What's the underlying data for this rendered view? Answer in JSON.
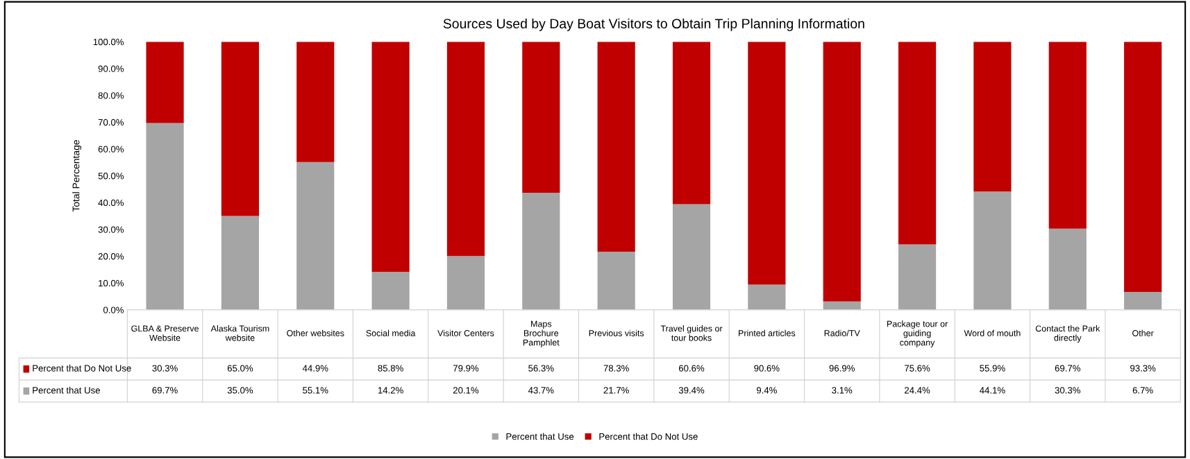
{
  "chart_data": {
    "type": "bar",
    "stacked": true,
    "title": "Sources Used by Day Boat Visitors to Obtain Trip Planning Information",
    "ylabel": "Total Percentage",
    "categories": [
      "GLBA & Preserve\nWebsite",
      "Alaska Tourism\nwebsite",
      "Other websites",
      "Social media",
      "Visitor Centers",
      "Maps\nBrochure\nPamphlet",
      "Previous visits",
      "Travel guides or\ntour books",
      "Printed articles",
      "Radio/TV",
      "Package tour or\nguiding\ncompany",
      "Word of mouth",
      "Contact the Park\ndirectly",
      "Other"
    ],
    "series": [
      {
        "name": "Percent that Use",
        "color": "#a5a5a5",
        "values": [
          69.7,
          35.0,
          55.1,
          14.2,
          20.1,
          43.7,
          21.7,
          39.4,
          9.4,
          3.1,
          24.4,
          44.1,
          30.3,
          6.7
        ],
        "value_labels": [
          "69.7%",
          "35.0%",
          "55.1%",
          "14.2%",
          "20.1%",
          "43.7%",
          "21.7%",
          "39.4%",
          "9.4%",
          "3.1%",
          "24.4%",
          "44.1%",
          "30.3%",
          "6.7%"
        ]
      },
      {
        "name": "Percent that Do Not Use",
        "color": "#c00000",
        "values": [
          30.3,
          65.0,
          44.9,
          85.8,
          79.9,
          56.3,
          78.3,
          60.6,
          90.6,
          96.9,
          75.6,
          55.9,
          69.7,
          93.3
        ],
        "value_labels": [
          "30.3%",
          "65.0%",
          "44.9%",
          "85.8%",
          "79.9%",
          "56.3%",
          "78.3%",
          "60.6%",
          "90.6%",
          "96.9%",
          "75.6%",
          "55.9%",
          "69.7%",
          "93.3%"
        ]
      }
    ],
    "ylim": [
      0,
      100
    ],
    "yticks": [
      {
        "value": 0,
        "label": "0.0%"
      },
      {
        "value": 10,
        "label": "10.0%"
      },
      {
        "value": 20,
        "label": "20.0%"
      },
      {
        "value": 30,
        "label": "30.0%"
      },
      {
        "value": 40,
        "label": "40.0%"
      },
      {
        "value": 50,
        "label": "50.0%"
      },
      {
        "value": 60,
        "label": "60.0%"
      },
      {
        "value": 70,
        "label": "70.0%"
      },
      {
        "value": 80,
        "label": "80.0%"
      },
      {
        "value": 90,
        "label": "90.0%"
      },
      {
        "value": 100,
        "label": "100.0%"
      }
    ],
    "grid": false,
    "legend": "bottom"
  }
}
